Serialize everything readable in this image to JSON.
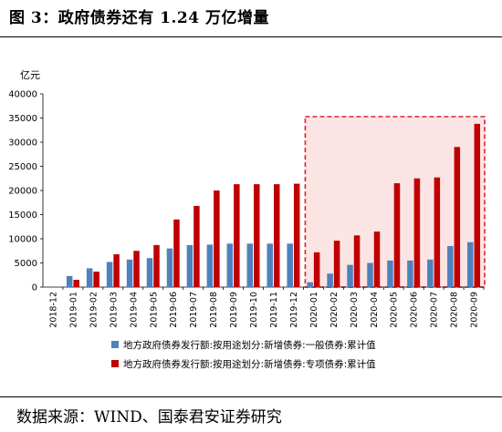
{
  "title": "图 3：政府债券还有 1.24 万亿增量",
  "source": "数据来源：WIND、国泰君安证券研究",
  "colors": {
    "series1": "#4f81bd",
    "series2": "#c00000",
    "highlight_border": "#e0202a",
    "highlight_fill": "#fbe4e4"
  },
  "chart_data": {
    "type": "bar",
    "title": "",
    "ylabel": "亿元",
    "xlabel": "",
    "ylim": [
      0,
      40000
    ],
    "yticks": [
      0,
      5000,
      10000,
      15000,
      20000,
      25000,
      30000,
      35000,
      40000
    ],
    "categories": [
      "2018-12",
      "2019-01",
      "2019-02",
      "2019-03",
      "2019-04",
      "2019-05",
      "2019-06",
      "2019-07",
      "2019-08",
      "2019-09",
      "2019-10",
      "2019-11",
      "2019-12",
      "2020-01",
      "2020-02",
      "2020-03",
      "2020-04",
      "2020-05",
      "2020-06",
      "2020-07",
      "2020-08",
      "2020-09"
    ],
    "series": [
      {
        "name": "地方政府债券发行额:按用途划分:新增债券:一般债券:累计值",
        "values": [
          null,
          2300,
          3900,
          5200,
          5700,
          6000,
          8000,
          8700,
          8800,
          9000,
          9000,
          9000,
          9000,
          1000,
          2800,
          4600,
          5000,
          5500,
          5500,
          5700,
          8500,
          9300
        ]
      },
      {
        "name": "地方政府债券发行额:按用途划分:新增债券:专项债券:累计值",
        "values": [
          null,
          1500,
          3200,
          6800,
          7500,
          8700,
          14000,
          16800,
          20000,
          21300,
          21300,
          21300,
          21400,
          7200,
          9600,
          10700,
          11500,
          21500,
          22500,
          22700,
          29000,
          33800
        ]
      }
    ],
    "highlight": {
      "from": "2020-01",
      "to": "2020-09"
    },
    "legend_position": "bottom",
    "grid": false
  }
}
